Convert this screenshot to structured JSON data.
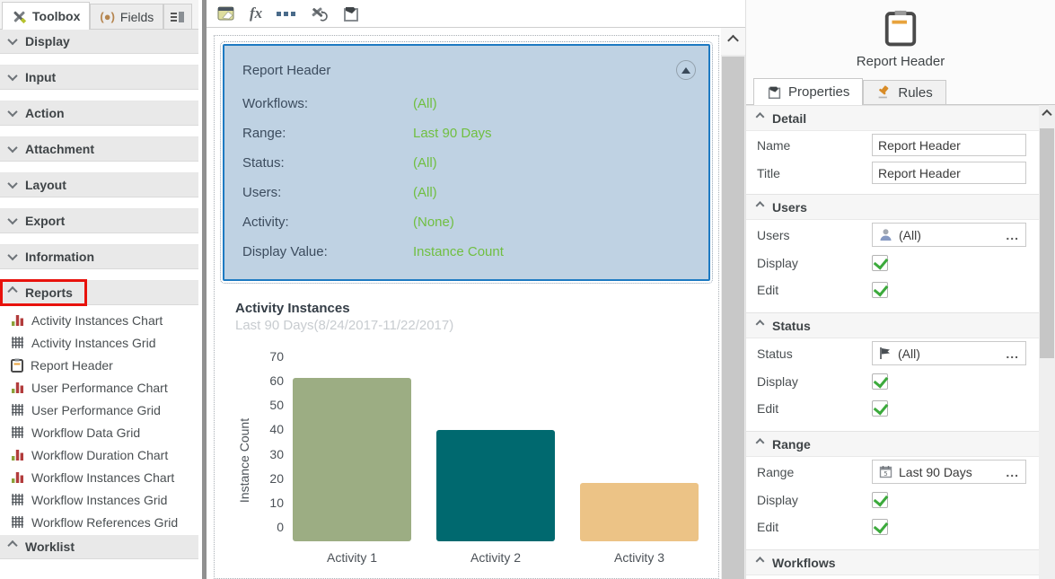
{
  "colors": {
    "accent_green": "#70bf41",
    "selection_blue_bg": "#bfd2e3",
    "selection_blue_border": "#1d7ac2",
    "annotation_red": "#e8120c",
    "checkbox_green": "#3caa3c"
  },
  "sidebar": {
    "tabs": [
      {
        "label": "Toolbox",
        "icon": "crossed-tools"
      },
      {
        "label": "Fields",
        "icon": "paren-dot"
      },
      {
        "label": "",
        "icon": "dock-panel"
      }
    ],
    "sections_collapsed": [
      "Display",
      "Input",
      "Action",
      "Attachment",
      "Layout",
      "Export",
      "Information"
    ],
    "reports_label": "Reports",
    "worklist_label": "Worklist",
    "report_items": [
      {
        "icon": "bar-chart",
        "label": "Activity Instances Chart"
      },
      {
        "icon": "grid",
        "label": "Activity Instances Grid"
      },
      {
        "icon": "clipboard",
        "label": "Report Header"
      },
      {
        "icon": "bar-chart",
        "label": "User Performance Chart"
      },
      {
        "icon": "grid",
        "label": "User Performance Grid"
      },
      {
        "icon": "grid",
        "label": "Workflow Data Grid"
      },
      {
        "icon": "bar-chart",
        "label": "Workflow Duration Chart"
      },
      {
        "icon": "bar-chart",
        "label": "Workflow Instances Chart"
      },
      {
        "icon": "grid",
        "label": "Workflow Instances Grid"
      },
      {
        "icon": "grid",
        "label": "Workflow References Grid"
      }
    ]
  },
  "canvas": {
    "toolbar_icons": [
      "theme-editor",
      "expression-fx",
      "ellipsis",
      "tools-refresh",
      "paste-special"
    ],
    "header_panel": {
      "title": "Report Header",
      "rows": [
        {
          "label": "Workflows:",
          "value": "(All)"
        },
        {
          "label": "Range:",
          "value": "Last 90 Days"
        },
        {
          "label": "Status:",
          "value": "(All)"
        },
        {
          "label": "Users:",
          "value": "(All)"
        },
        {
          "label": "Activity:",
          "value": "(None)"
        },
        {
          "label": "Display Value:",
          "value": "Instance Count"
        }
      ]
    }
  },
  "chart_data": {
    "type": "bar",
    "title": "Activity Instances",
    "subtitle": "Last 90 Days(8/24/2017-11/22/2017)",
    "categories": [
      "Activity 1",
      "Activity 2",
      "Activity 3"
    ],
    "values": [
      62,
      42,
      22
    ],
    "colors": [
      "#9cad83",
      "#00696f",
      "#ecc386"
    ],
    "xlabel": "",
    "ylabel": "Instance Count",
    "ylim": [
      0,
      70
    ],
    "yticks": [
      70,
      60,
      50,
      40,
      30,
      20,
      10,
      0
    ],
    "grid": false,
    "legend_position": "none"
  },
  "properties_panel": {
    "header_title": "Report Header",
    "header_icon": "clipboard",
    "tabs": [
      {
        "label": "Properties",
        "icon": "clipboard-tag",
        "active": true
      },
      {
        "label": "Rules",
        "icon": "gavel",
        "active": false
      }
    ],
    "sections": [
      {
        "title": "Detail",
        "rows": [
          {
            "label": "Name",
            "type": "text",
            "value": "Report Header"
          },
          {
            "label": "Title",
            "type": "text",
            "value": "Report Header"
          }
        ]
      },
      {
        "title": "Users",
        "rows": [
          {
            "label": "Users",
            "type": "picker",
            "icon": "person",
            "value": "(All)",
            "more": "..."
          },
          {
            "label": "Display",
            "type": "checkbox",
            "checked": true
          },
          {
            "label": "Edit",
            "type": "checkbox",
            "checked": true
          }
        ]
      },
      {
        "title": "Status",
        "rows": [
          {
            "label": "Status",
            "type": "picker",
            "icon": "flag",
            "value": "(All)",
            "more": "..."
          },
          {
            "label": "Display",
            "type": "checkbox",
            "checked": true
          },
          {
            "label": "Edit",
            "type": "checkbox",
            "checked": true
          }
        ]
      },
      {
        "title": "Range",
        "rows": [
          {
            "label": "Range",
            "type": "picker",
            "icon": "calendar",
            "value": "Last 90 Days",
            "more": "..."
          },
          {
            "label": "Display",
            "type": "checkbox",
            "checked": true
          },
          {
            "label": "Edit",
            "type": "checkbox",
            "checked": true
          }
        ]
      },
      {
        "title": "Workflows",
        "rows": []
      }
    ]
  }
}
